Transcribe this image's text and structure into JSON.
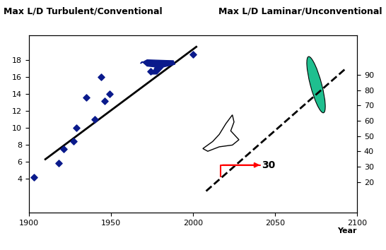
{
  "chart_data": {
    "type": "scatter",
    "y_label": "Max L/D Turbulent/Conventional",
    "y2_label": "Max L/D Laminar/Unconventional",
    "x_label": "Year",
    "xlim": [
      1900,
      2100
    ],
    "xticks": [
      1900,
      1950,
      2000,
      2050,
      2100
    ],
    "ylim": [
      0,
      21
    ],
    "yticks": [
      4,
      6,
      8,
      10,
      12,
      14,
      16,
      18
    ],
    "y2lim": [
      0,
      116
    ],
    "y2ticks": [
      20,
      30,
      40,
      50,
      60,
      70,
      80,
      90
    ],
    "series": [
      {
        "type": "scatter",
        "marker": "diamond",
        "color": "#0a1a8c",
        "x": [
          1903,
          1918,
          1921,
          1927,
          1929,
          1935,
          1940,
          1944,
          1946,
          1949,
          1974,
          2000
        ],
        "values": [
          4.2,
          5.8,
          7.5,
          8.4,
          10.0,
          13.6,
          11.0,
          16.0,
          13.2,
          14.0,
          16.7,
          18.7
        ]
      },
      {
        "type": "line",
        "color": "#000000",
        "line_style": "solid",
        "x": [
          1910,
          2002
        ],
        "values": [
          6.3,
          19.6
        ]
      },
      {
        "type": "line",
        "axis": "y2",
        "color": "#000000",
        "line_style": "dashed",
        "x": [
          2008,
          2093
        ],
        "values": [
          14,
          94
        ]
      }
    ],
    "annotations": [
      {
        "text": "30",
        "x": 2042,
        "y": 31,
        "axis": "y2",
        "color": "#ff0000"
      }
    ]
  }
}
